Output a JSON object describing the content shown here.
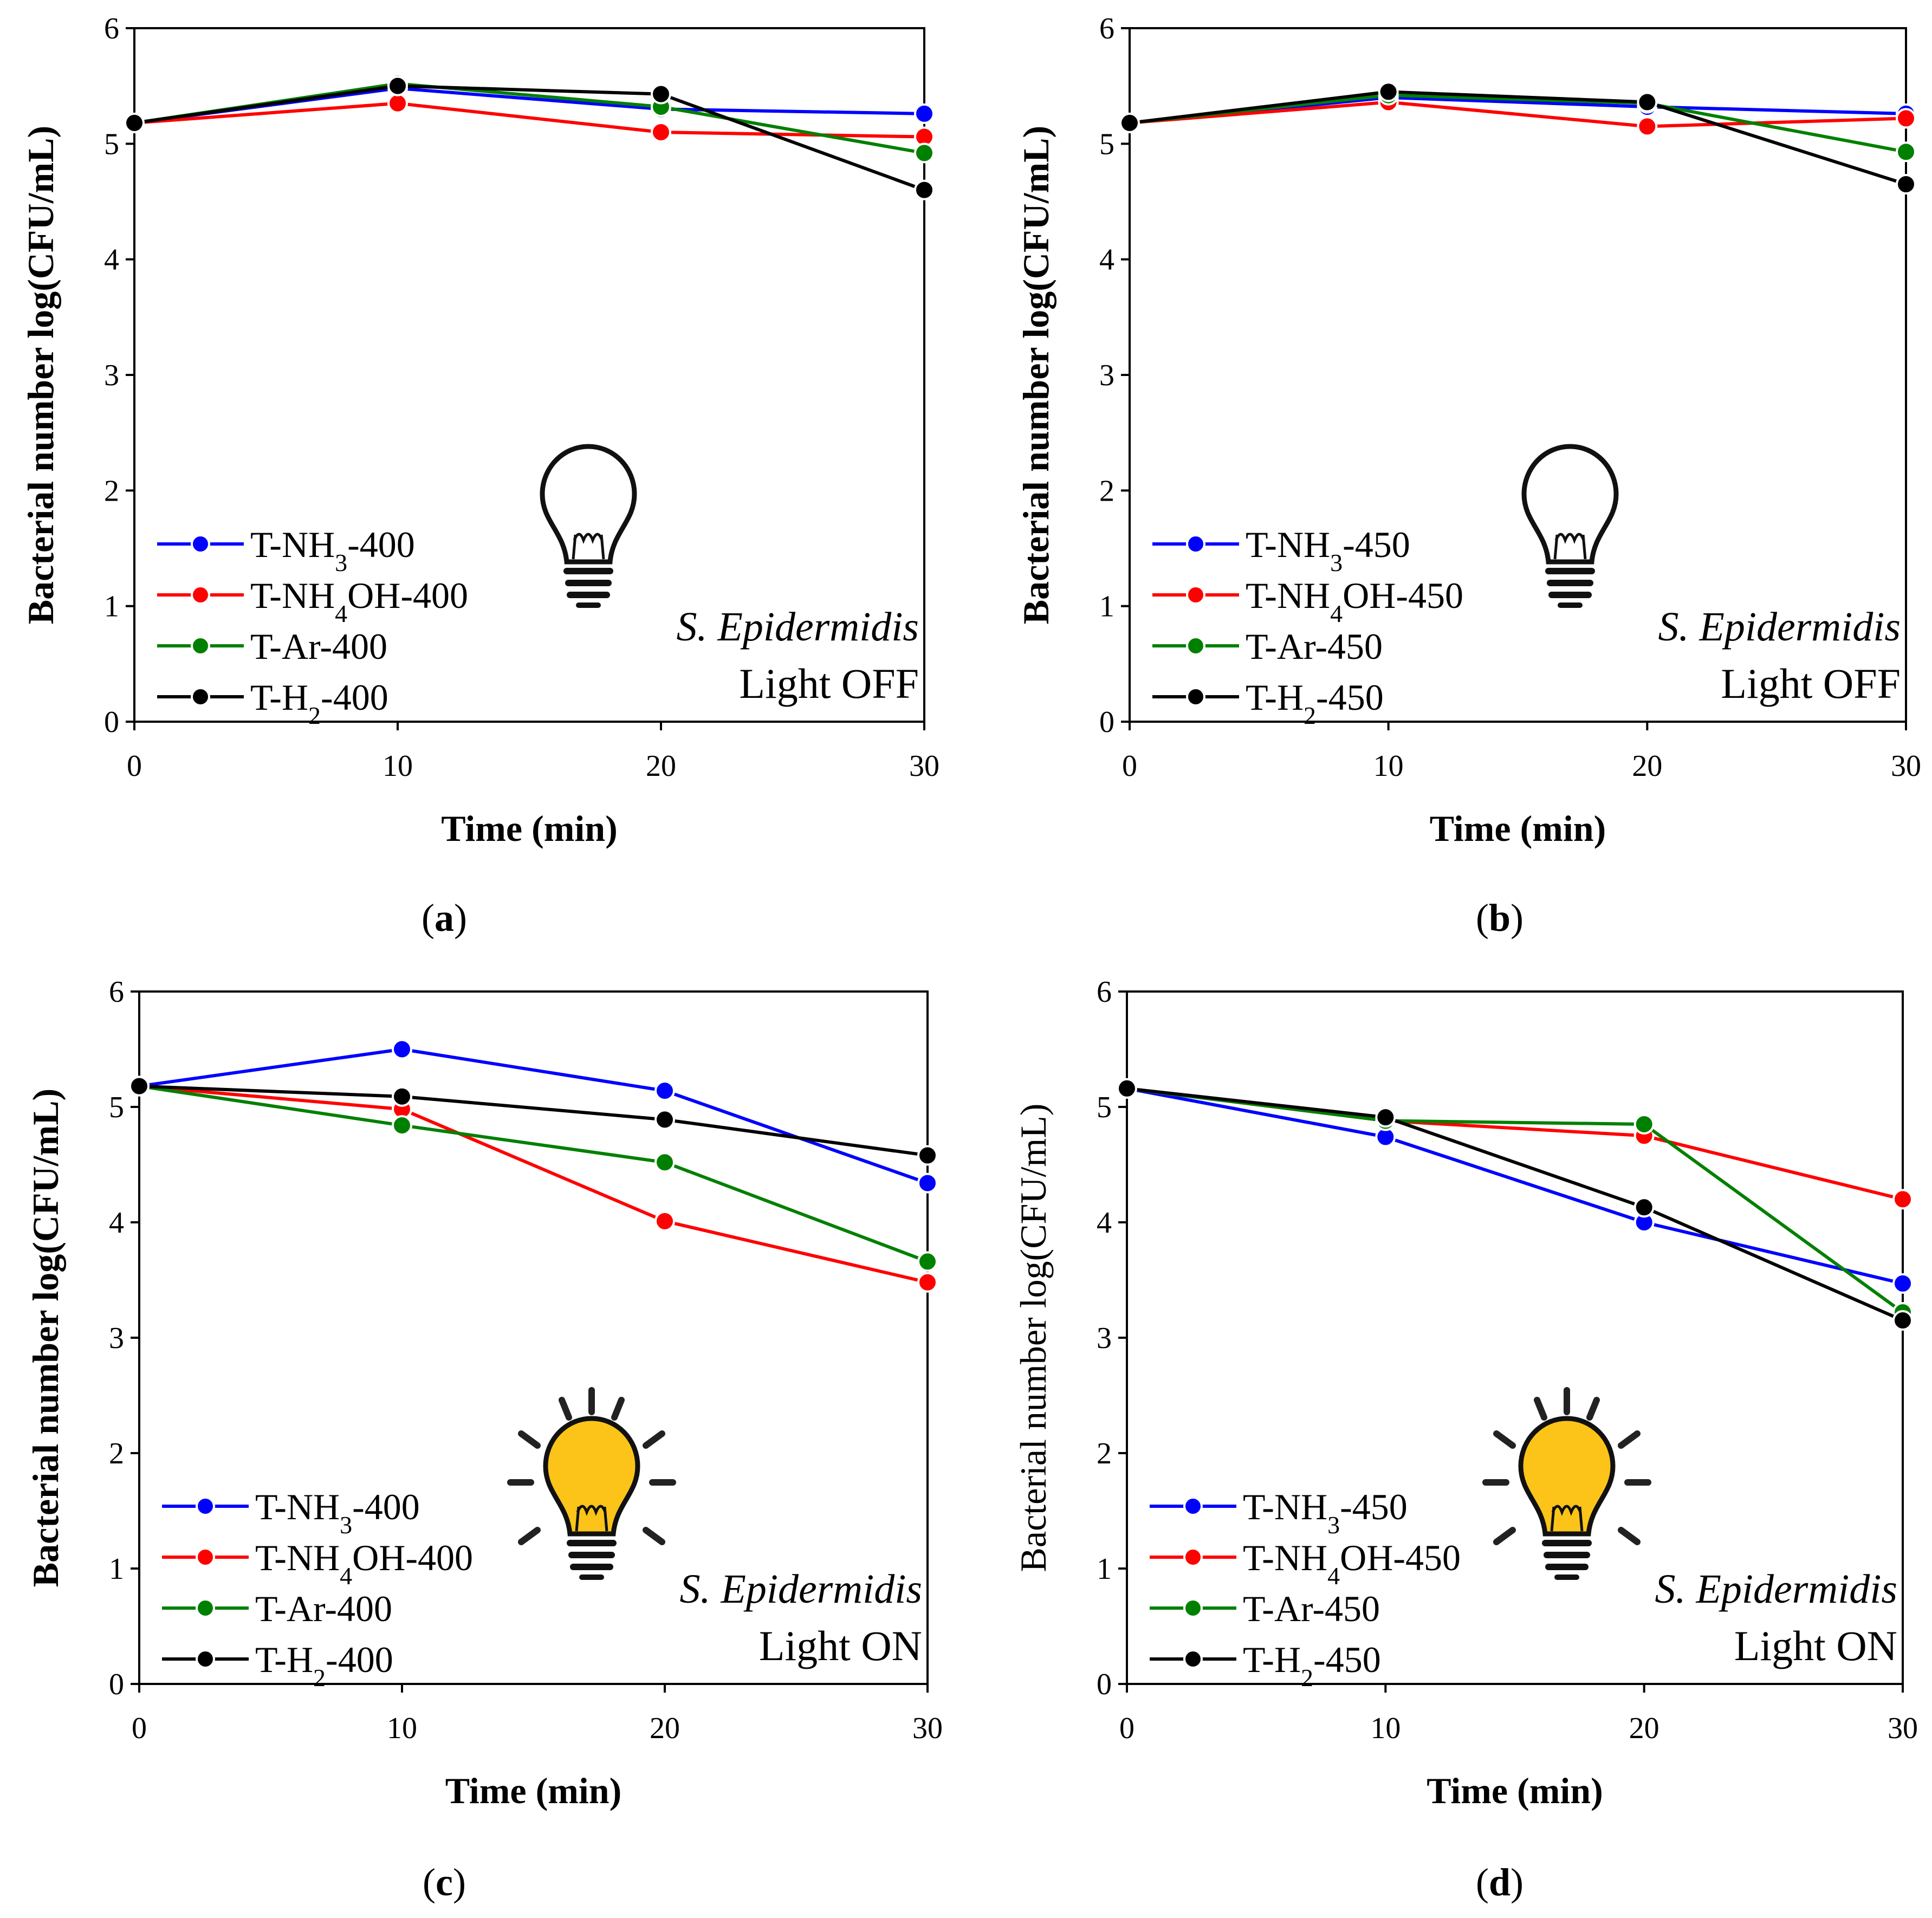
{
  "chart_data": [
    {
      "panel": "(a)",
      "panel_letter": "a",
      "type": "line",
      "xlabel": "Time (min)",
      "ylabel": "Bacterial number log(CFU/mL)",
      "ylabel_bold": true,
      "x": [
        0,
        10,
        20,
        30
      ],
      "xlim": [
        0,
        30
      ],
      "ylim": [
        0,
        6
      ],
      "xticks": [
        "0",
        "10",
        "20",
        "30"
      ],
      "yticks": [
        "0",
        "1",
        "2",
        "3",
        "4",
        "5",
        "6"
      ],
      "species": "S. Epidermidis",
      "condition": "Light OFF",
      "light_on": false,
      "legend_position": "bottom-left",
      "series": [
        {
          "name": "T-NH3-400",
          "label_pre": "T-NH",
          "label_sub": "3",
          "label_post": "-400",
          "color": "#0000ff",
          "values": [
            5.18,
            5.48,
            5.3,
            5.26
          ]
        },
        {
          "name": "T-NH4OH-400",
          "label_pre": "T-NH",
          "label_sub": "4",
          "label_post": "OH-400",
          "color": "#ff0000",
          "values": [
            5.18,
            5.35,
            5.1,
            5.06
          ]
        },
        {
          "name": "T-Ar-400",
          "label_pre": "T-Ar-400",
          "label_sub": "",
          "label_post": "",
          "color": "#008000",
          "values": [
            5.18,
            5.52,
            5.32,
            4.92
          ]
        },
        {
          "name": "T-H2-400",
          "label_pre": "T-H",
          "label_sub": "2",
          "label_post": "-400",
          "color": "#000000",
          "values": [
            5.18,
            5.5,
            5.43,
            4.6
          ]
        }
      ]
    },
    {
      "panel": "(b)",
      "panel_letter": "b",
      "type": "line",
      "xlabel": "Time (min)",
      "ylabel": "Bacterial number log(CFU/mL)",
      "ylabel_bold": true,
      "x": [
        0,
        10,
        20,
        30
      ],
      "xlim": [
        0,
        30
      ],
      "ylim": [
        0,
        6
      ],
      "xticks": [
        "0",
        "10",
        "20",
        "30"
      ],
      "yticks": [
        "0",
        "1",
        "2",
        "3",
        "4",
        "5",
        "6"
      ],
      "species": "S. Epidermidis",
      "condition": "Light OFF",
      "light_on": false,
      "legend_position": "bottom-left",
      "series": [
        {
          "name": "T-NH3-450",
          "label_pre": "T-NH",
          "label_sub": "3",
          "label_post": "-450",
          "color": "#0000ff",
          "values": [
            5.18,
            5.4,
            5.32,
            5.26
          ]
        },
        {
          "name": "T-NH4OH-450",
          "label_pre": "T-NH",
          "label_sub": "4",
          "label_post": "OH-450",
          "color": "#ff0000",
          "values": [
            5.18,
            5.36,
            5.15,
            5.22
          ]
        },
        {
          "name": "T-Ar-450",
          "label_pre": "T-Ar-450",
          "label_sub": "",
          "label_post": "",
          "color": "#008000",
          "values": [
            5.18,
            5.42,
            5.35,
            4.93
          ]
        },
        {
          "name": "T-H2-450",
          "label_pre": "T-H",
          "label_sub": "2",
          "label_post": "-450",
          "color": "#000000",
          "values": [
            5.18,
            5.45,
            5.36,
            4.65
          ]
        }
      ]
    },
    {
      "panel": "(c)",
      "panel_letter": "c",
      "type": "line",
      "xlabel": "Time (min)",
      "ylabel": "Bacterial number log(CFU/mL)",
      "ylabel_bold": true,
      "x": [
        0,
        10,
        20,
        30
      ],
      "xlim": [
        0,
        30
      ],
      "ylim": [
        0,
        6
      ],
      "xticks": [
        "0",
        "10",
        "20",
        "30"
      ],
      "yticks": [
        "0",
        "1",
        "2",
        "3",
        "4",
        "5",
        "6"
      ],
      "species": "S. Epidermidis",
      "condition": "Light ON",
      "light_on": true,
      "legend_position": "bottom-left",
      "series": [
        {
          "name": "T-NH3-400",
          "label_pre": "T-NH",
          "label_sub": "3",
          "label_post": "-400",
          "color": "#0000ff",
          "values": [
            5.18,
            5.5,
            5.14,
            4.34
          ]
        },
        {
          "name": "T-NH4OH-400",
          "label_pre": "T-NH",
          "label_sub": "4",
          "label_post": "OH-400",
          "color": "#ff0000",
          "values": [
            5.18,
            4.98,
            4.01,
            3.48
          ]
        },
        {
          "name": "T-Ar-400",
          "label_pre": "T-Ar-400",
          "label_sub": "",
          "label_post": "",
          "color": "#008000",
          "values": [
            5.18,
            4.84,
            4.52,
            3.66
          ]
        },
        {
          "name": "T-H2-400",
          "label_pre": "T-H",
          "label_sub": "2",
          "label_post": "-400",
          "color": "#000000",
          "values": [
            5.18,
            5.09,
            4.89,
            4.58
          ]
        }
      ]
    },
    {
      "panel": "(d)",
      "panel_letter": "d",
      "type": "line",
      "xlabel": "Time (min)",
      "ylabel": "Bacterial number log(CFU/mL)",
      "ylabel_bold": false,
      "x": [
        0,
        10,
        20,
        30
      ],
      "xlim": [
        0,
        30
      ],
      "ylim": [
        0,
        6
      ],
      "xticks": [
        "0",
        "10",
        "20",
        "30"
      ],
      "yticks": [
        "0",
        "1",
        "2",
        "3",
        "4",
        "5",
        "6"
      ],
      "species": "S. Epidermidis",
      "condition": "Light ON",
      "light_on": true,
      "legend_position": "bottom-left",
      "series": [
        {
          "name": "T-NH3-450",
          "label_pre": "T-NH",
          "label_sub": "3",
          "label_post": "-450",
          "color": "#0000ff",
          "values": [
            5.16,
            4.74,
            4.0,
            3.47
          ]
        },
        {
          "name": "T-NH4OH-450",
          "label_pre": "T-NH",
          "label_sub": "4",
          "label_post": "OH-450",
          "color": "#ff0000",
          "values": [
            5.16,
            4.88,
            4.75,
            4.2
          ]
        },
        {
          "name": "T-Ar-450",
          "label_pre": "T-Ar-450",
          "label_sub": "",
          "label_post": "",
          "color": "#008000",
          "values": [
            5.16,
            4.88,
            4.85,
            3.22
          ]
        },
        {
          "name": "T-H2-450",
          "label_pre": "T-H",
          "label_sub": "2",
          "label_post": "-450",
          "color": "#000000",
          "values": [
            5.16,
            4.91,
            4.13,
            3.15
          ]
        }
      ]
    }
  ]
}
